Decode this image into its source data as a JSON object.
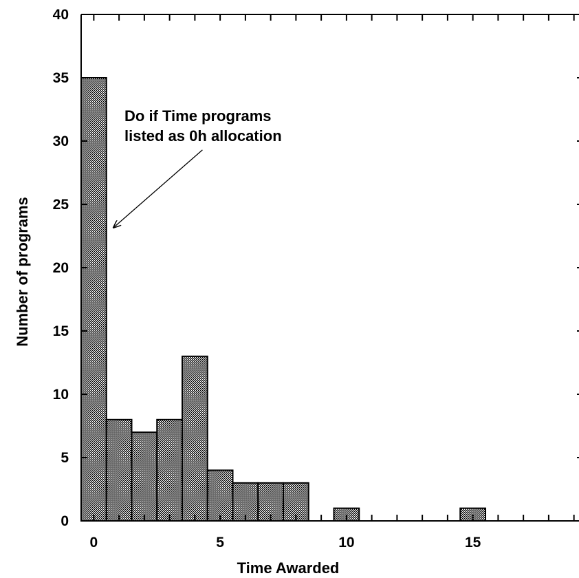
{
  "chart_data": {
    "type": "bar",
    "xlabel": "Time Awarded",
    "ylabel": "Number of programs",
    "xlim": [
      -0.5,
      19.2
    ],
    "ylim": [
      0,
      40
    ],
    "xticks": [
      0,
      5,
      10,
      15
    ],
    "yticks": [
      0,
      5,
      10,
      15,
      20,
      25,
      30,
      35,
      40
    ],
    "bin_width": 1,
    "bins": [
      {
        "x": 0,
        "value": 35
      },
      {
        "x": 1,
        "value": 8
      },
      {
        "x": 2,
        "value": 7
      },
      {
        "x": 3,
        "value": 8
      },
      {
        "x": 4,
        "value": 13
      },
      {
        "x": 5,
        "value": 4
      },
      {
        "x": 6,
        "value": 3
      },
      {
        "x": 7,
        "value": 3
      },
      {
        "x": 8,
        "value": 3
      },
      {
        "x": 10,
        "value": 1
      },
      {
        "x": 15,
        "value": 1
      }
    ],
    "annotation": {
      "lines": [
        "Do if Time programs",
        "listed as 0h allocation"
      ],
      "arrow_from": [
        4.3,
        29.3
      ],
      "arrow_to": [
        0.8,
        23.2
      ]
    },
    "grid": false,
    "legend": "none",
    "bar_color": "#808080",
    "bar_edge_color": "#000000"
  }
}
